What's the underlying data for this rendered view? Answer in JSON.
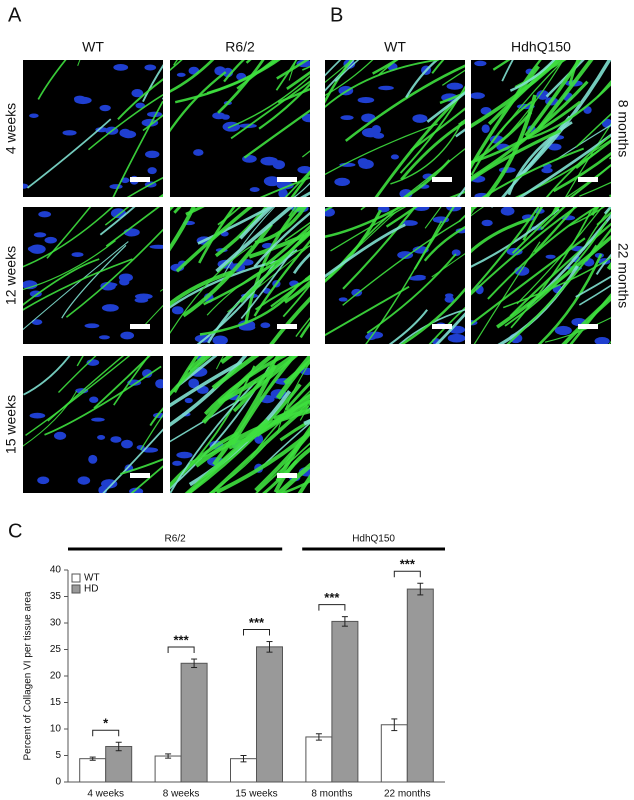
{
  "panels": {
    "A": {
      "label": "A",
      "columns": [
        "WT",
        "R6/2"
      ],
      "rows": [
        "4 weeks",
        "12 weeks",
        "15 weeks"
      ]
    },
    "B": {
      "label": "B",
      "columns": [
        "WT",
        "HdhQ150"
      ],
      "rows": [
        "8 months",
        "22 months"
      ]
    }
  },
  "chart_data": {
    "type": "bar",
    "panel_label": "C",
    "y_label": "Percent of Collagen VI per tissue area",
    "categories": [
      "4 weeks",
      "8 weeks",
      "15 weeks",
      "8 months",
      "22 months"
    ],
    "series": [
      {
        "name": "WT",
        "color": "#ffffff",
        "values": [
          4.4,
          4.9,
          4.4,
          8.5,
          10.8
        ],
        "errors": [
          0.3,
          0.4,
          0.6,
          0.6,
          1.1
        ]
      },
      {
        "name": "HD",
        "color": "#999999",
        "values": [
          6.7,
          22.4,
          25.5,
          30.3,
          36.4
        ],
        "errors": [
          0.8,
          0.8,
          1.0,
          0.9,
          1.1
        ]
      }
    ],
    "annotations": [
      "*",
      "***",
      "***",
      "***",
      "***"
    ],
    "groups": [
      {
        "label": "R6/2",
        "categories": [
          "4 weeks",
          "8 weeks",
          "15 weeks"
        ]
      },
      {
        "label": "HdhQ150",
        "categories": [
          "8 months",
          "22 months"
        ]
      }
    ],
    "ylim": [
      0,
      40
    ],
    "yticks": [
      0,
      5,
      10,
      15,
      20,
      25,
      30,
      35,
      40
    ],
    "legend": "top-left"
  }
}
